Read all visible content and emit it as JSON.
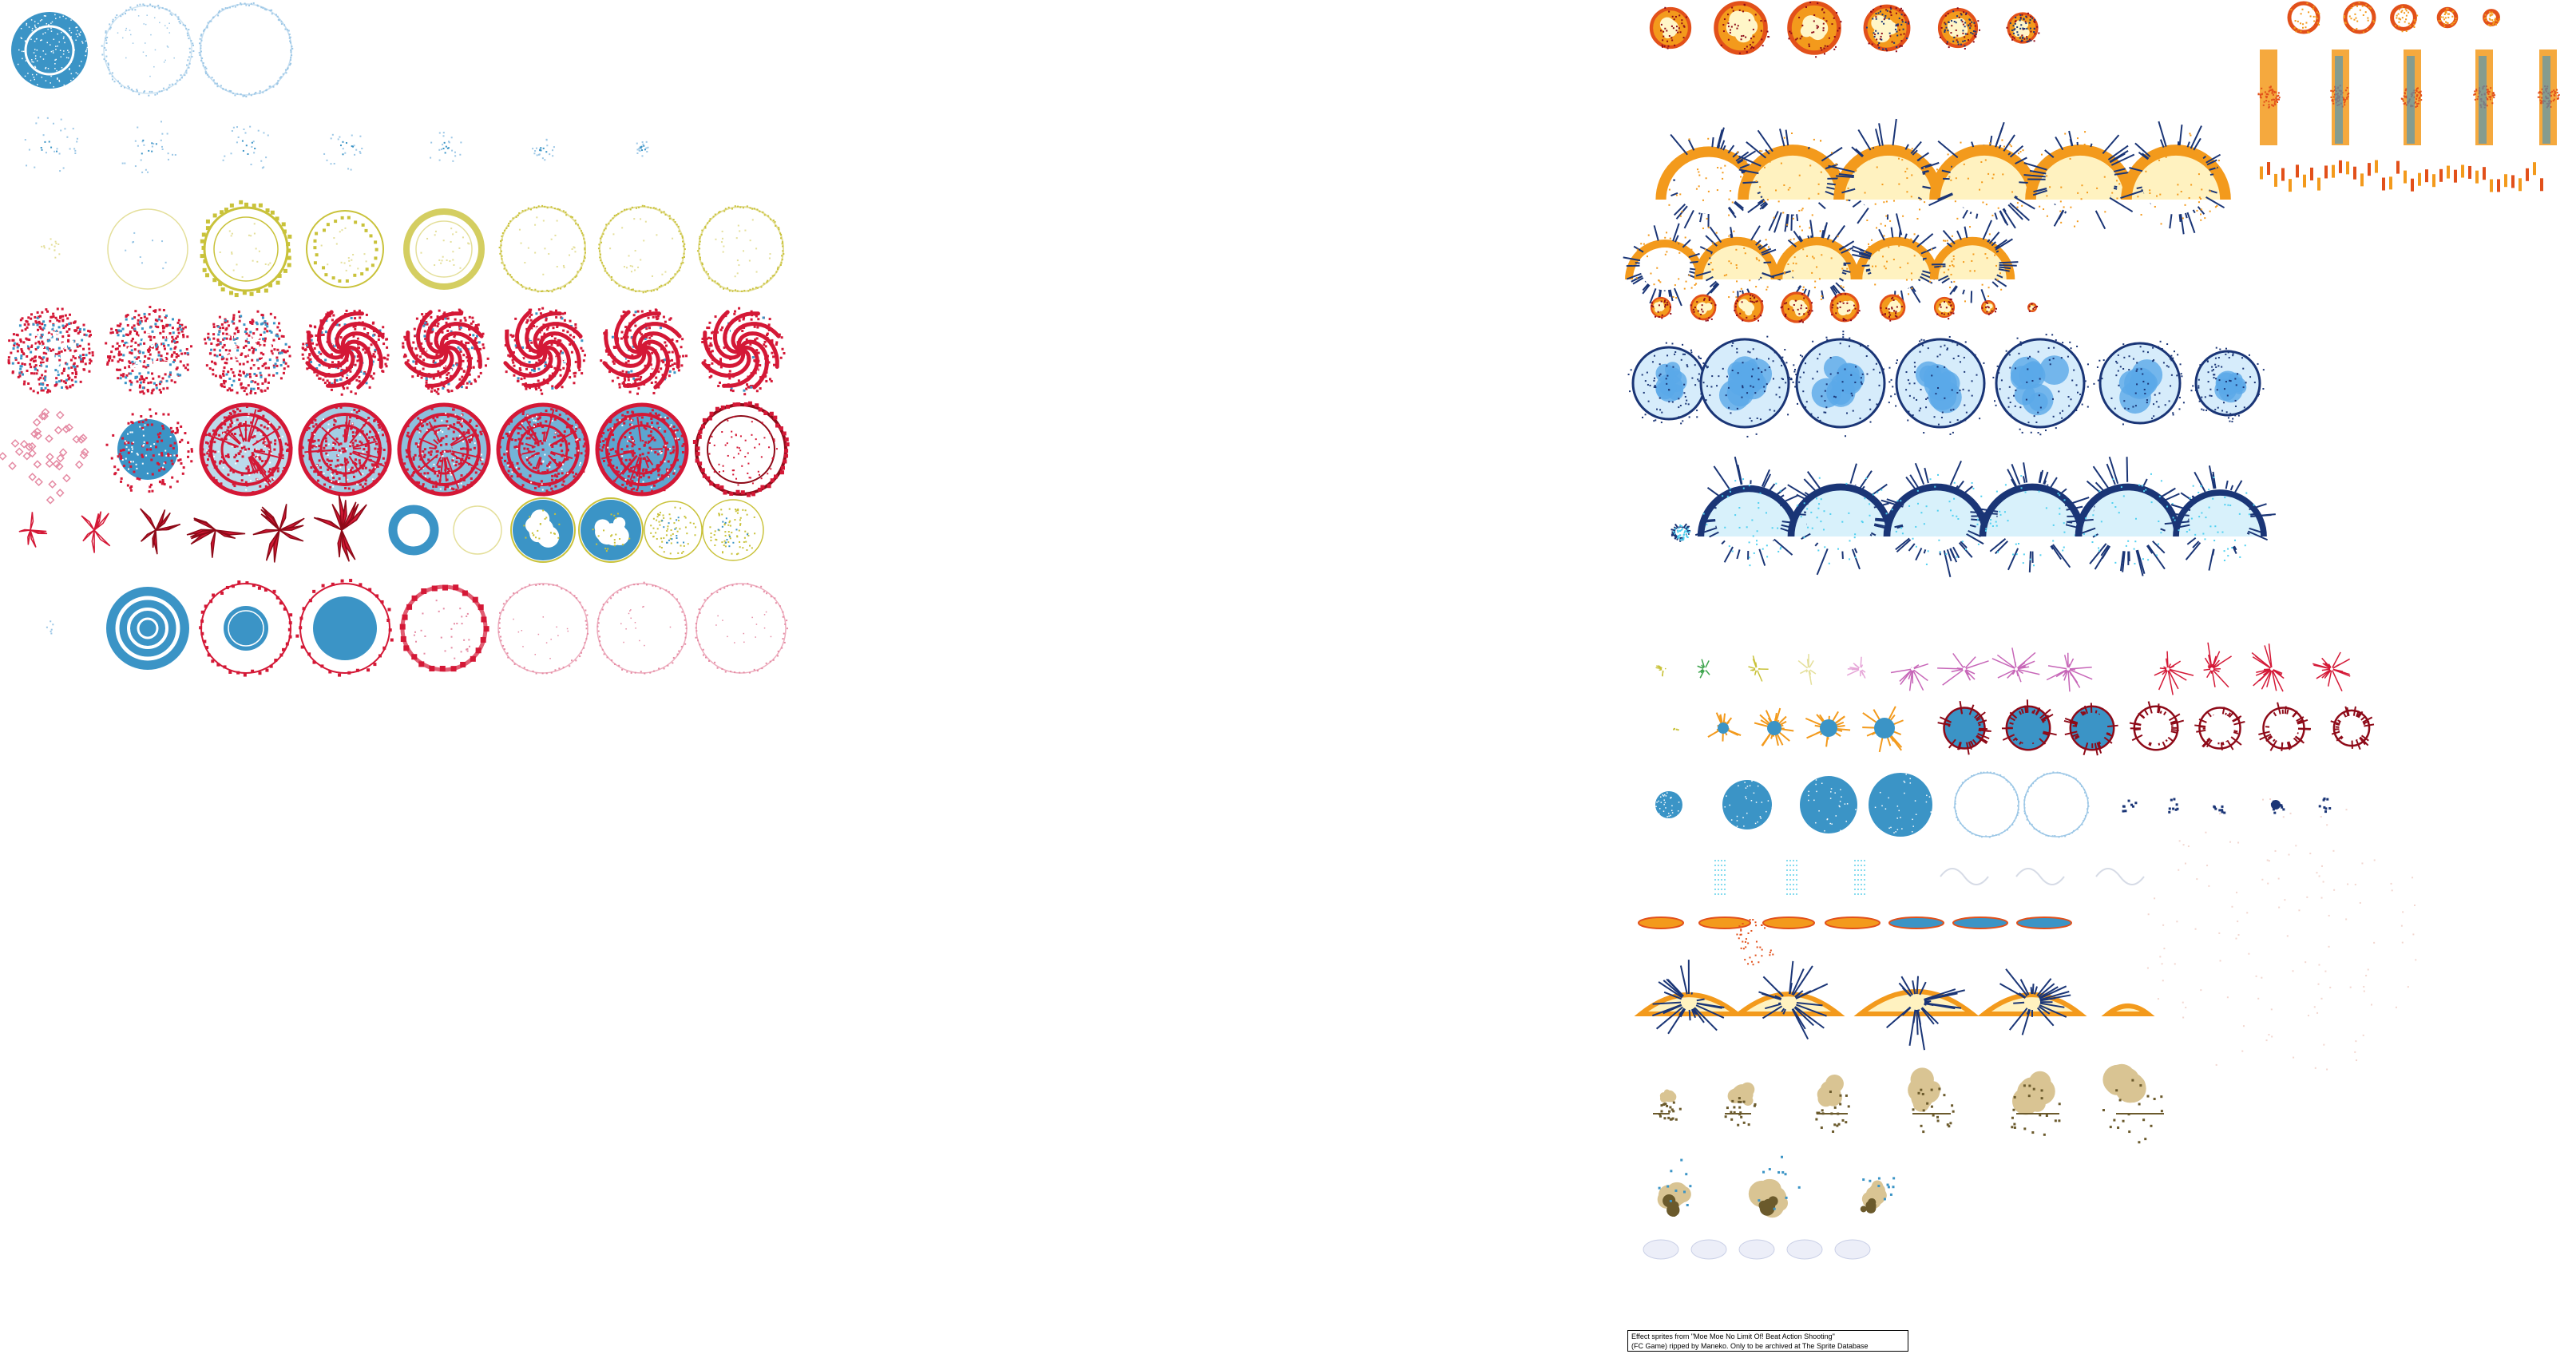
{
  "sheet": {
    "background": "#ffffff",
    "palette": {
      "blue": "#3b94c6",
      "lightblue": "#9cc7e6",
      "yellow": "#c9c23a",
      "paleyellow": "#e4df9a",
      "red": "#d41836",
      "darkred": "#8e0a18",
      "pink": "#e58aa3",
      "orange": "#f39a1c",
      "fire": "#e2501a",
      "navy": "#1a3576",
      "tan": "#d9c493",
      "olive": "#6b5a2c",
      "magenta": "#c766b8"
    },
    "effects": [
      "blue-disc-effect",
      "blue-ring-effect",
      "blue-sparkle-effect",
      "yellow-ring-effect",
      "red-swirl-burst-effect",
      "red-blue-magic-circle-effect",
      "red-slash-burst-effect",
      "blue-ring-donut-effect",
      "yellow-blue-disc-effect",
      "blue-target-ring-effect",
      "red-blue-ring-effect",
      "fire-explosion-effect",
      "fire-pillar-effect",
      "fire-dome-explosion-effect",
      "small-fire-burst-effect",
      "blue-explosion-effect",
      "blue-dome-explosion-effect",
      "spark-effect",
      "radial-spark-disc-effect",
      "blue-disc-grow-effect",
      "water-splash-effect",
      "flat-fire-streak-effect",
      "ground-fire-burst-effect",
      "smoke-cloud-effect",
      "pale-puff-effect"
    ]
  },
  "credit": {
    "line1": "Effect sprites from \"Moe Moe No Limit Of! Beat Action Shooting\"",
    "line2": "(FC Game) ripped by Maneko. Only to be archived at The Sprite Database"
  }
}
